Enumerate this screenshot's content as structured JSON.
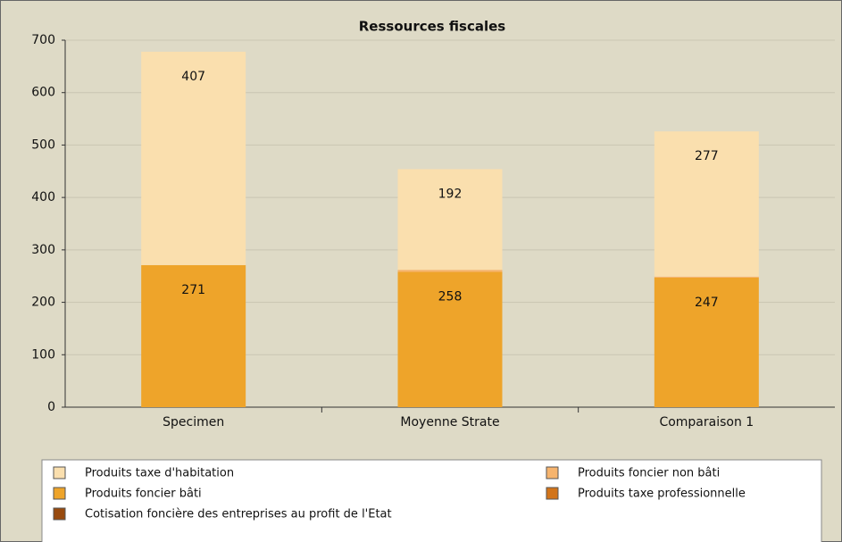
{
  "chart_data": {
    "type": "stacked-bar",
    "title": "Ressources fiscales",
    "categories": [
      "Specimen",
      "Moyenne Strate",
      "Comparaison 1"
    ],
    "series": [
      {
        "name": "Produits foncier bâti",
        "color": "#eea42a",
        "values": [
          271,
          258,
          247
        ]
      },
      {
        "name": "Produits foncier non bâti",
        "color": "#f6b46e",
        "values": [
          0,
          4,
          2
        ]
      },
      {
        "name": "Produits taxe professionnelle",
        "color": "#d2741a",
        "values": [
          0,
          0,
          0
        ]
      },
      {
        "name": "Cotisation foncière des entreprises au profit de l'Etat",
        "color": "#984a0e",
        "values": [
          0,
          0,
          0
        ]
      },
      {
        "name": "Produits taxe d'habitation",
        "color": "#fadfae",
        "values": [
          407,
          192,
          277
        ]
      }
    ],
    "legend_order": [
      4,
      1,
      0,
      2,
      3
    ],
    "ylim": [
      0,
      700
    ],
    "yticks": [
      0,
      100,
      200,
      300,
      400,
      500,
      600,
      700
    ],
    "grid": true
  }
}
